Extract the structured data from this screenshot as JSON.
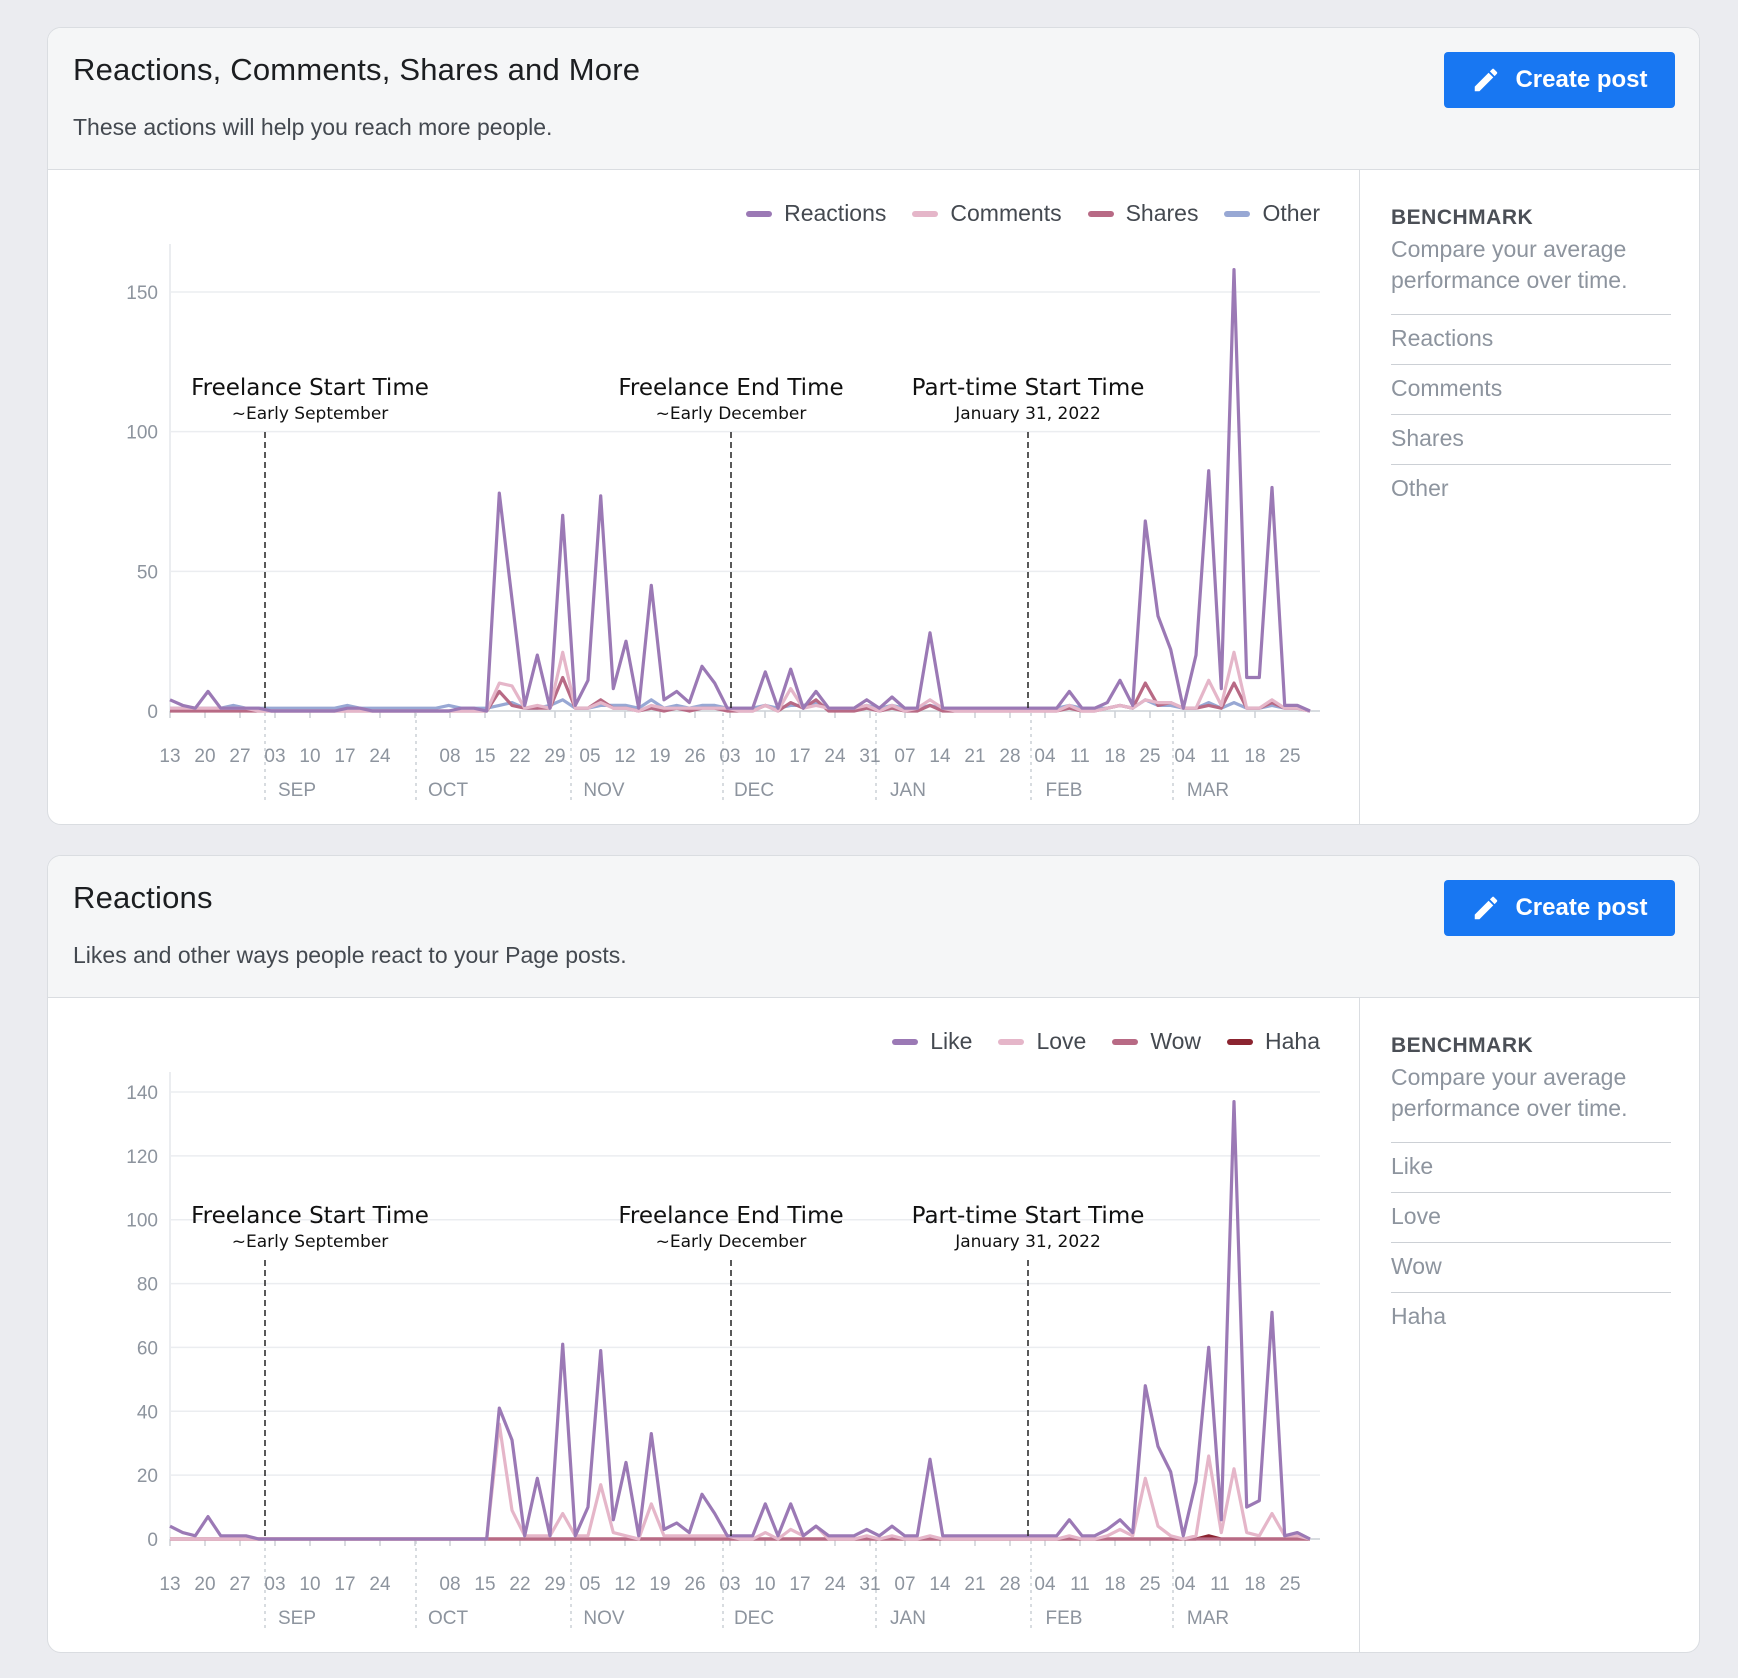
{
  "cards": [
    {
      "title": "Reactions, Comments, Shares and More",
      "subtitle": "These actions will help you reach more people.",
      "create_label": "Create post",
      "benchmark": {
        "title": "BENCHMARK",
        "description": "Compare your average performance over time.",
        "items": [
          "Reactions",
          "Comments",
          "Shares",
          "Other"
        ]
      }
    },
    {
      "title": "Reactions",
      "subtitle": "Likes and other ways people react to your Page posts.",
      "create_label": "Create post",
      "benchmark": {
        "title": "BENCHMARK",
        "description": "Compare your average performance over time.",
        "items": [
          "Like",
          "Love",
          "Wow",
          "Haha"
        ]
      }
    }
  ],
  "colors": {
    "reactions": "#9b79b5",
    "comments": "#e5b6c9",
    "shares": "#b86a85",
    "other": "#98a8d4",
    "like": "#9b79b5",
    "love": "#e5b6c9",
    "wow": "#b86a85",
    "haha": "#8b2430",
    "accent": "#1877f2"
  },
  "chart_data": [
    {
      "type": "line",
      "x_tick_labels": [
        "13",
        "20",
        "27",
        "03",
        "10",
        "17",
        "24",
        "08",
        "15",
        "22",
        "29",
        "05",
        "12",
        "19",
        "26",
        "03",
        "10",
        "17",
        "24",
        "31",
        "07",
        "14",
        "21",
        "28",
        "04",
        "11",
        "18",
        "25",
        "04",
        "11",
        "18",
        "25"
      ],
      "month_labels": [
        "SEP",
        "OCT",
        "NOV",
        "DEC",
        "JAN",
        "FEB",
        "MAR"
      ],
      "yticks": [
        0,
        50,
        100,
        150
      ],
      "ylim": [
        0,
        160
      ],
      "legend": "top-right",
      "grid": true,
      "series": [
        {
          "name": "Reactions",
          "values": [
            4,
            2,
            1,
            7,
            1,
            1,
            1,
            1,
            0,
            0,
            0,
            0,
            0,
            0,
            1,
            1,
            0,
            0,
            0,
            0,
            0,
            0,
            0,
            1,
            1,
            0,
            78,
            40,
            2,
            20,
            1,
            70,
            2,
            11,
            77,
            8,
            25,
            1,
            45,
            4,
            7,
            3,
            16,
            10,
            1,
            1,
            1,
            14,
            1,
            15,
            1,
            7,
            1,
            1,
            1,
            4,
            1,
            5,
            1,
            1,
            28,
            1,
            1,
            1,
            1,
            1,
            1,
            1,
            1,
            1,
            1,
            7,
            1,
            1,
            3,
            11,
            2,
            68,
            34,
            22,
            1,
            20,
            86,
            8,
            158,
            12,
            12,
            80,
            2,
            2,
            0
          ]
        },
        {
          "name": "Comments",
          "values": [
            1,
            1,
            1,
            1,
            1,
            1,
            1,
            0,
            0,
            0,
            0,
            0,
            0,
            0,
            0,
            0,
            0,
            0,
            0,
            0,
            0,
            0,
            0,
            0,
            0,
            0,
            10,
            9,
            1,
            2,
            1,
            21,
            1,
            1,
            3,
            1,
            1,
            0,
            2,
            1,
            1,
            1,
            1,
            1,
            1,
            0,
            0,
            2,
            0,
            8,
            1,
            2,
            1,
            1,
            1,
            2,
            0,
            2,
            0,
            1,
            4,
            1,
            0,
            0,
            0,
            0,
            0,
            0,
            0,
            0,
            0,
            2,
            0,
            0,
            1,
            2,
            1,
            4,
            3,
            3,
            1,
            1,
            11,
            2,
            21,
            1,
            1,
            4,
            1,
            1,
            0
          ]
        },
        {
          "name": "Shares",
          "values": [
            0,
            0,
            0,
            0,
            0,
            0,
            0,
            0,
            0,
            0,
            0,
            0,
            0,
            0,
            0,
            0,
            0,
            0,
            0,
            0,
            0,
            0,
            0,
            0,
            0,
            0,
            7,
            2,
            1,
            1,
            1,
            12,
            1,
            1,
            4,
            1,
            1,
            0,
            1,
            0,
            1,
            0,
            1,
            1,
            0,
            0,
            0,
            2,
            0,
            3,
            1,
            4,
            0,
            0,
            0,
            1,
            0,
            1,
            0,
            0,
            2,
            0,
            0,
            0,
            0,
            0,
            0,
            0,
            0,
            0,
            0,
            1,
            0,
            0,
            1,
            2,
            1,
            10,
            2,
            3,
            1,
            1,
            2,
            1,
            10,
            1,
            1,
            3,
            1,
            1,
            0
          ]
        },
        {
          "name": "Other",
          "values": [
            1,
            1,
            1,
            1,
            1,
            2,
            1,
            1,
            1,
            1,
            1,
            1,
            1,
            1,
            2,
            1,
            1,
            1,
            1,
            1,
            1,
            1,
            2,
            1,
            1,
            1,
            2,
            3,
            1,
            1,
            2,
            4,
            1,
            1,
            2,
            2,
            2,
            1,
            4,
            1,
            2,
            1,
            2,
            2,
            1,
            1,
            1,
            2,
            1,
            2,
            2,
            3,
            1,
            1,
            1,
            2,
            1,
            2,
            1,
            1,
            2,
            1,
            1,
            1,
            1,
            1,
            1,
            1,
            1,
            1,
            1,
            2,
            1,
            1,
            1,
            2,
            1,
            4,
            2,
            2,
            1,
            1,
            3,
            1,
            3,
            1,
            1,
            2,
            1,
            1,
            0
          ]
        }
      ],
      "annotations": [
        {
          "title": "Freelance Start Time",
          "subtitle": "~Early September"
        },
        {
          "title": "Freelance End Time",
          "subtitle": "~Early December"
        },
        {
          "title": "Part-time Start Time",
          "subtitle": "January 31, 2022"
        }
      ]
    },
    {
      "type": "line",
      "x_tick_labels": [
        "13",
        "20",
        "27",
        "03",
        "10",
        "17",
        "24",
        "08",
        "15",
        "22",
        "29",
        "05",
        "12",
        "19",
        "26",
        "03",
        "10",
        "17",
        "24",
        "31",
        "07",
        "14",
        "21",
        "28",
        "04",
        "11",
        "18",
        "25",
        "04",
        "11",
        "18",
        "25"
      ],
      "month_labels": [
        "SEP",
        "OCT",
        "NOV",
        "DEC",
        "JAN",
        "FEB",
        "MAR"
      ],
      "yticks": [
        0,
        20,
        40,
        60,
        80,
        100,
        120,
        140
      ],
      "ylim": [
        0,
        140
      ],
      "legend": "top-right",
      "grid": true,
      "series": [
        {
          "name": "Like",
          "values": [
            4,
            2,
            1,
            7,
            1,
            1,
            1,
            0,
            0,
            0,
            0,
            0,
            0,
            0,
            0,
            0,
            0,
            0,
            0,
            0,
            0,
            0,
            0,
            0,
            0,
            0,
            41,
            31,
            1,
            19,
            1,
            61,
            1,
            10,
            59,
            6,
            24,
            1,
            33,
            3,
            5,
            2,
            14,
            8,
            1,
            1,
            1,
            11,
            1,
            11,
            1,
            4,
            1,
            1,
            1,
            3,
            1,
            4,
            1,
            1,
            25,
            1,
            1,
            1,
            1,
            1,
            1,
            1,
            1,
            1,
            1,
            6,
            1,
            1,
            3,
            6,
            2,
            48,
            29,
            21,
            1,
            18,
            60,
            6,
            137,
            10,
            12,
            71,
            1,
            2,
            0
          ]
        },
        {
          "name": "Love",
          "values": [
            0,
            0,
            0,
            0,
            0,
            0,
            0,
            0,
            0,
            0,
            0,
            0,
            0,
            0,
            0,
            0,
            0,
            0,
            0,
            0,
            0,
            0,
            0,
            0,
            0,
            0,
            36,
            9,
            1,
            1,
            1,
            8,
            1,
            1,
            17,
            2,
            1,
            0,
            11,
            1,
            1,
            1,
            1,
            1,
            1,
            0,
            0,
            2,
            0,
            3,
            1,
            4,
            0,
            0,
            0,
            1,
            0,
            1,
            0,
            0,
            1,
            0,
            0,
            0,
            0,
            0,
            0,
            0,
            0,
            0,
            0,
            1,
            0,
            0,
            1,
            3,
            1,
            19,
            4,
            1,
            0,
            1,
            26,
            2,
            22,
            2,
            1,
            8,
            1,
            1,
            0
          ]
        },
        {
          "name": "Wow",
          "values": [
            0,
            0,
            0,
            0,
            0,
            0,
            0,
            0,
            0,
            0,
            0,
            0,
            0,
            0,
            0,
            0,
            0,
            0,
            0,
            0,
            0,
            0,
            0,
            0,
            0,
            0,
            0,
            0,
            0,
            0,
            0,
            0,
            0,
            0,
            0,
            0,
            0,
            0,
            0,
            0,
            0,
            0,
            0,
            0,
            0,
            0,
            0,
            0,
            0,
            0,
            0,
            0,
            0,
            0,
            0,
            0,
            0,
            0,
            0,
            0,
            0,
            0,
            0,
            0,
            0,
            0,
            0,
            0,
            0,
            0,
            0,
            0,
            0,
            0,
            0,
            0,
            0,
            0,
            0,
            0,
            0,
            0,
            0,
            0,
            0,
            0,
            0,
            0,
            0,
            0,
            0
          ]
        },
        {
          "name": "Haha",
          "values": [
            0,
            0,
            0,
            0,
            0,
            0,
            0,
            0,
            0,
            0,
            0,
            0,
            0,
            0,
            0,
            0,
            0,
            0,
            0,
            0,
            0,
            0,
            0,
            0,
            0,
            0,
            0,
            0,
            0,
            0,
            0,
            0,
            0,
            0,
            0,
            0,
            0,
            0,
            0,
            0,
            0,
            0,
            0,
            0,
            0,
            0,
            0,
            0,
            0,
            0,
            0,
            0,
            0,
            0,
            0,
            0,
            0,
            0,
            0,
            0,
            0,
            0,
            0,
            0,
            0,
            0,
            0,
            0,
            0,
            0,
            0,
            0,
            0,
            0,
            0,
            0,
            0,
            0,
            0,
            0,
            0,
            0,
            1,
            0,
            0,
            0,
            0,
            0,
            0,
            0,
            0
          ]
        }
      ],
      "annotations": [
        {
          "title": "Freelance Start Time",
          "subtitle": "~Early September"
        },
        {
          "title": "Freelance End Time",
          "subtitle": "~Early December"
        },
        {
          "title": "Part-time Start Time",
          "subtitle": "January 31, 2022"
        }
      ]
    }
  ]
}
